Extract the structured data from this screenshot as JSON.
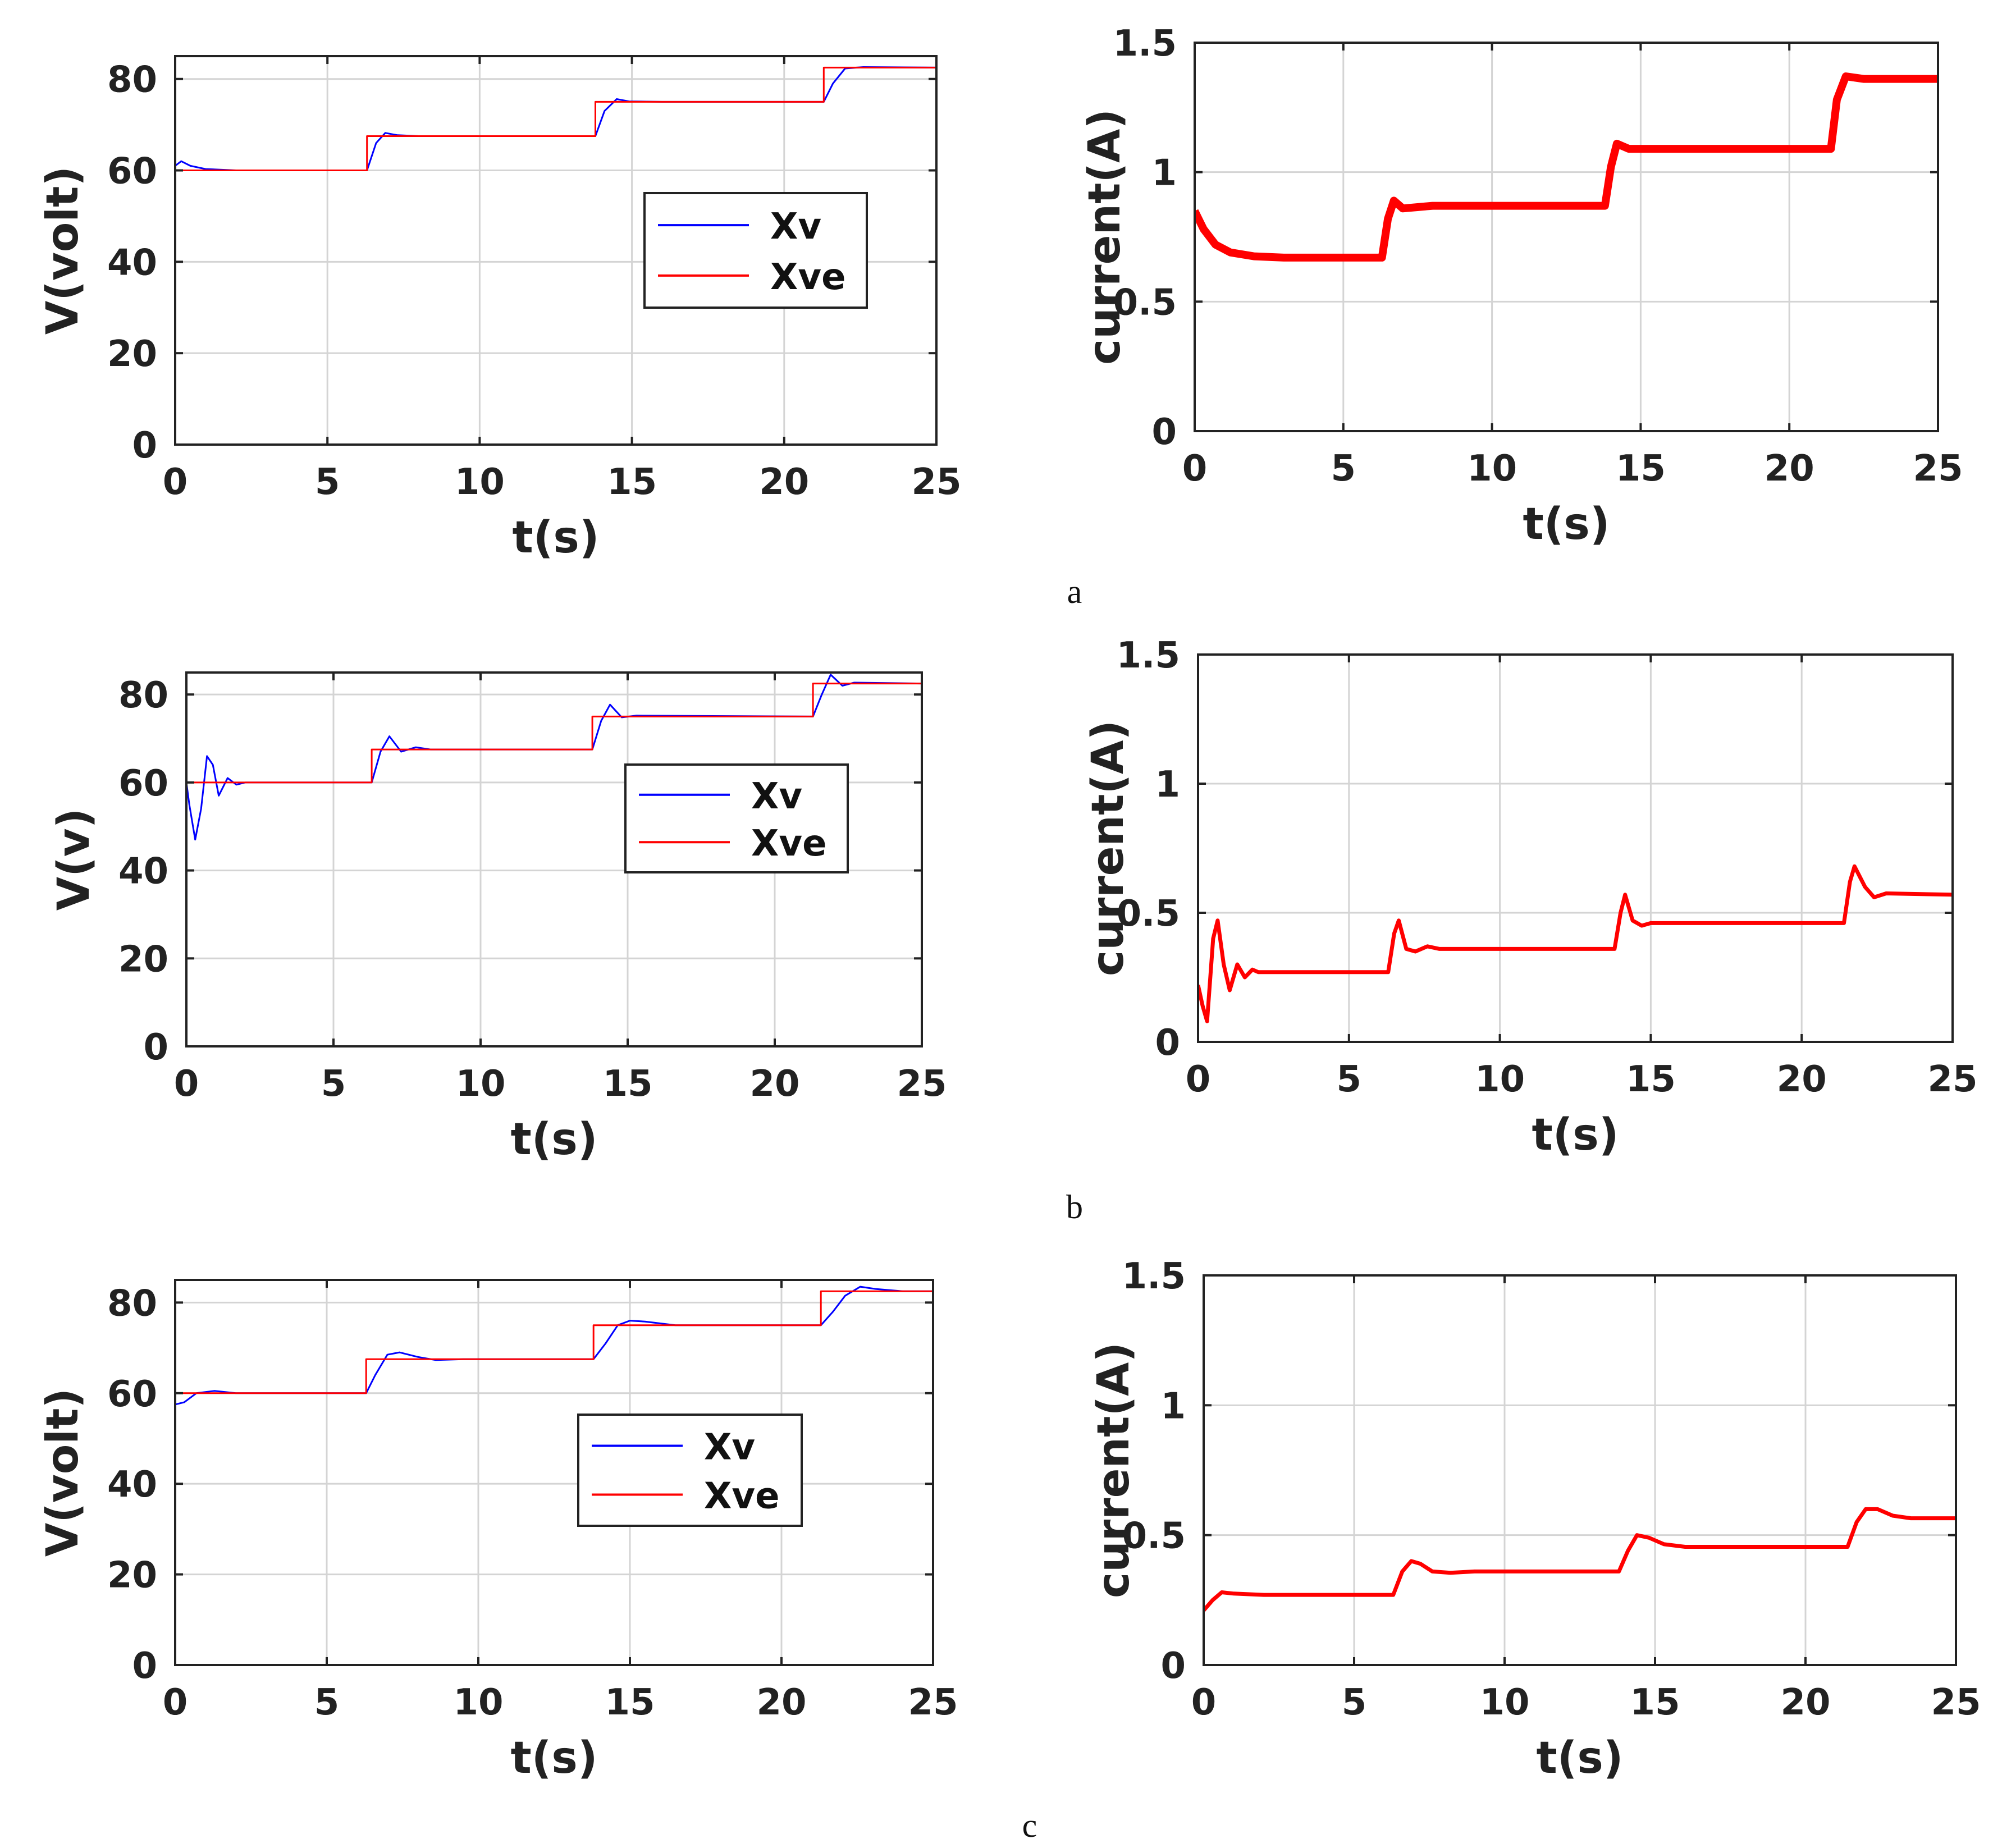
{
  "chart_data": [
    {
      "id": "a-voltage",
      "type": "line",
      "xlabel": "t(s)",
      "ylabel": "V(volt)",
      "xlim": [
        0,
        25
      ],
      "ylim": [
        0,
        85
      ],
      "xticks": [
        0,
        5,
        10,
        15,
        20,
        25
      ],
      "yticks": [
        0,
        20,
        40,
        60,
        80
      ],
      "grid": true,
      "legend": {
        "placement": "center-right",
        "entries": [
          "Xv",
          "Xve"
        ]
      },
      "series": [
        {
          "name": "Xv",
          "color": "#0000ff",
          "line_width": 3,
          "points": [
            [
              0,
              61
            ],
            [
              0.2,
              62
            ],
            [
              0.5,
              61
            ],
            [
              1,
              60.3
            ],
            [
              2,
              60
            ],
            [
              6.3,
              60
            ],
            [
              6.6,
              66
            ],
            [
              6.9,
              68.2
            ],
            [
              7.3,
              67.7
            ],
            [
              8,
              67.5
            ],
            [
              13.8,
              67.5
            ],
            [
              14.1,
              73
            ],
            [
              14.5,
              75.6
            ],
            [
              14.9,
              75.1
            ],
            [
              16,
              75
            ],
            [
              21.3,
              75
            ],
            [
              21.6,
              79
            ],
            [
              22,
              82.3
            ],
            [
              22.6,
              82.6
            ],
            [
              25,
              82.5
            ]
          ]
        },
        {
          "name": "Xve",
          "color": "#ff0000",
          "line_width": 3,
          "points": [
            [
              0,
              60
            ],
            [
              6.3,
              60
            ],
            [
              6.3,
              67.5
            ],
            [
              13.8,
              67.5
            ],
            [
              13.8,
              75
            ],
            [
              21.3,
              75
            ],
            [
              21.3,
              82.5
            ],
            [
              25,
              82.5
            ]
          ]
        }
      ]
    },
    {
      "id": "a-current",
      "type": "line",
      "xlabel": "t(s)",
      "ylabel": "current(A)",
      "xlim": [
        0,
        25
      ],
      "ylim": [
        0,
        1.5
      ],
      "xticks": [
        0,
        5,
        10,
        15,
        20,
        25
      ],
      "yticks": [
        0,
        0.5,
        1,
        1.5
      ],
      "ytick_labels": [
        "0",
        "0.5",
        "1",
        "1.5"
      ],
      "grid": true,
      "series": [
        {
          "name": "current",
          "color": "#ff0000",
          "line_width": 14,
          "points": [
            [
              0,
              0.85
            ],
            [
              0.3,
              0.78
            ],
            [
              0.7,
              0.72
            ],
            [
              1.2,
              0.69
            ],
            [
              2,
              0.675
            ],
            [
              3,
              0.67
            ],
            [
              6.3,
              0.67
            ],
            [
              6.5,
              0.82
            ],
            [
              6.7,
              0.89
            ],
            [
              7,
              0.86
            ],
            [
              8,
              0.87
            ],
            [
              13.8,
              0.87
            ],
            [
              14,
              1.02
            ],
            [
              14.2,
              1.11
            ],
            [
              14.6,
              1.09
            ],
            [
              16,
              1.09
            ],
            [
              21.4,
              1.09
            ],
            [
              21.6,
              1.28
            ],
            [
              21.9,
              1.37
            ],
            [
              22.5,
              1.36
            ],
            [
              25,
              1.36
            ]
          ]
        }
      ]
    },
    {
      "id": "b-voltage",
      "type": "line",
      "xlabel": "t(s)",
      "ylabel": "V(v)",
      "xlim": [
        0,
        25
      ],
      "ylim": [
        0,
        85
      ],
      "xticks": [
        0,
        5,
        10,
        15,
        20,
        25
      ],
      "yticks": [
        0,
        20,
        40,
        60,
        80
      ],
      "grid": true,
      "legend": {
        "placement": "center-right",
        "entries": [
          "Xv",
          "Xve"
        ]
      },
      "series": [
        {
          "name": "Xv",
          "color": "#0000ff",
          "line_width": 3,
          "points": [
            [
              0,
              60
            ],
            [
              0.1,
              55
            ],
            [
              0.3,
              47
            ],
            [
              0.5,
              54
            ],
            [
              0.7,
              66
            ],
            [
              0.9,
              64
            ],
            [
              1.1,
              57
            ],
            [
              1.4,
              61
            ],
            [
              1.7,
              59.5
            ],
            [
              2,
              60
            ],
            [
              6.3,
              60
            ],
            [
              6.6,
              67
            ],
            [
              6.9,
              70.5
            ],
            [
              7.3,
              67
            ],
            [
              7.8,
              68
            ],
            [
              8.3,
              67.5
            ],
            [
              13.8,
              67.5
            ],
            [
              14.1,
              74
            ],
            [
              14.4,
              77.7
            ],
            [
              14.8,
              74.8
            ],
            [
              15.3,
              75.2
            ],
            [
              21.3,
              75
            ],
            [
              21.6,
              80
            ],
            [
              21.9,
              84.5
            ],
            [
              22.3,
              82
            ],
            [
              22.7,
              82.7
            ],
            [
              25,
              82.5
            ]
          ]
        },
        {
          "name": "Xve",
          "color": "#ff0000",
          "line_width": 3,
          "points": [
            [
              0,
              60
            ],
            [
              6.3,
              60
            ],
            [
              6.3,
              67.5
            ],
            [
              13.8,
              67.5
            ],
            [
              13.8,
              75
            ],
            [
              21.3,
              75
            ],
            [
              21.3,
              82.5
            ],
            [
              25,
              82.5
            ]
          ]
        }
      ]
    },
    {
      "id": "b-current",
      "type": "line",
      "xlabel": "t(s)",
      "ylabel": "current(A)",
      "xlim": [
        0,
        25
      ],
      "ylim": [
        0,
        1.5
      ],
      "xticks": [
        0,
        5,
        10,
        15,
        20,
        25
      ],
      "yticks": [
        0,
        0.5,
        1,
        1.5
      ],
      "ytick_labels": [
        "0",
        "0.5",
        "1",
        "1.5"
      ],
      "grid": true,
      "series": [
        {
          "name": "current",
          "color": "#ff0000",
          "line_width": 7,
          "points": [
            [
              0,
              0.22
            ],
            [
              0.15,
              0.14
            ],
            [
              0.3,
              0.08
            ],
            [
              0.5,
              0.4
            ],
            [
              0.65,
              0.47
            ],
            [
              0.85,
              0.3
            ],
            [
              1.05,
              0.2
            ],
            [
              1.3,
              0.3
            ],
            [
              1.55,
              0.25
            ],
            [
              1.8,
              0.28
            ],
            [
              2,
              0.27
            ],
            [
              6.3,
              0.27
            ],
            [
              6.5,
              0.42
            ],
            [
              6.65,
              0.47
            ],
            [
              6.9,
              0.36
            ],
            [
              7.2,
              0.35
            ],
            [
              7.6,
              0.37
            ],
            [
              8,
              0.36
            ],
            [
              13.8,
              0.36
            ],
            [
              14.0,
              0.5
            ],
            [
              14.15,
              0.57
            ],
            [
              14.4,
              0.47
            ],
            [
              14.7,
              0.45
            ],
            [
              15,
              0.46
            ],
            [
              21.4,
              0.46
            ],
            [
              21.6,
              0.62
            ],
            [
              21.75,
              0.68
            ],
            [
              22.1,
              0.6
            ],
            [
              22.4,
              0.56
            ],
            [
              22.8,
              0.575
            ],
            [
              25,
              0.57
            ]
          ]
        }
      ]
    },
    {
      "id": "c-voltage",
      "type": "line",
      "xlabel": "t(s)",
      "ylabel": "V(volt)",
      "xlim": [
        0,
        25
      ],
      "ylim": [
        0,
        85
      ],
      "xticks": [
        0,
        5,
        10,
        15,
        20,
        25
      ],
      "yticks": [
        0,
        20,
        40,
        60,
        80
      ],
      "grid": true,
      "legend": {
        "placement": "lower-center",
        "entries": [
          "Xv",
          "Xve"
        ]
      },
      "series": [
        {
          "name": "Xv",
          "color": "#0000ff",
          "line_width": 3,
          "points": [
            [
              0,
              57.5
            ],
            [
              0.3,
              58
            ],
            [
              0.7,
              60
            ],
            [
              1.3,
              60.5
            ],
            [
              2,
              60
            ],
            [
              6.3,
              60
            ],
            [
              6.6,
              64
            ],
            [
              7,
              68.5
            ],
            [
              7.4,
              69
            ],
            [
              8,
              68
            ],
            [
              8.6,
              67.3
            ],
            [
              9.5,
              67.5
            ],
            [
              13.8,
              67.5
            ],
            [
              14.2,
              71
            ],
            [
              14.6,
              75
            ],
            [
              15,
              76
            ],
            [
              15.5,
              75.8
            ],
            [
              16.5,
              75
            ],
            [
              21.3,
              75
            ],
            [
              21.7,
              78
            ],
            [
              22.1,
              81.5
            ],
            [
              22.6,
              83.5
            ],
            [
              23.1,
              83
            ],
            [
              24,
              82.5
            ],
            [
              25,
              82.5
            ]
          ]
        },
        {
          "name": "Xve",
          "color": "#ff0000",
          "line_width": 3,
          "points": [
            [
              0,
              60
            ],
            [
              6.3,
              60
            ],
            [
              6.3,
              67.5
            ],
            [
              13.8,
              67.5
            ],
            [
              13.8,
              75
            ],
            [
              21.3,
              75
            ],
            [
              21.3,
              82.5
            ],
            [
              25,
              82.5
            ]
          ]
        }
      ]
    },
    {
      "id": "c-current",
      "type": "line",
      "xlabel": "t(s)",
      "ylabel": "current(A)",
      "xlim": [
        0,
        25
      ],
      "ylim": [
        0,
        1.5
      ],
      "xticks": [
        0,
        5,
        10,
        15,
        20,
        25
      ],
      "yticks": [
        0,
        0.5,
        1,
        1.5
      ],
      "ytick_labels": [
        "0",
        "0.5",
        "1",
        "1.5"
      ],
      "grid": true,
      "series": [
        {
          "name": "current",
          "color": "#ff0000",
          "line_width": 7,
          "points": [
            [
              0,
              0.21
            ],
            [
              0.3,
              0.25
            ],
            [
              0.6,
              0.28
            ],
            [
              1,
              0.275
            ],
            [
              2,
              0.27
            ],
            [
              6.3,
              0.27
            ],
            [
              6.6,
              0.36
            ],
            [
              6.9,
              0.4
            ],
            [
              7.2,
              0.39
            ],
            [
              7.6,
              0.36
            ],
            [
              8.2,
              0.355
            ],
            [
              9,
              0.36
            ],
            [
              13.8,
              0.36
            ],
            [
              14.1,
              0.44
            ],
            [
              14.4,
              0.5
            ],
            [
              14.8,
              0.49
            ],
            [
              15.3,
              0.465
            ],
            [
              16,
              0.455
            ],
            [
              21.4,
              0.455
            ],
            [
              21.7,
              0.55
            ],
            [
              22.0,
              0.6
            ],
            [
              22.4,
              0.6
            ],
            [
              22.9,
              0.575
            ],
            [
              23.5,
              0.565
            ],
            [
              25,
              0.565
            ]
          ]
        }
      ]
    }
  ],
  "captions": [
    "a",
    "b",
    "c"
  ]
}
